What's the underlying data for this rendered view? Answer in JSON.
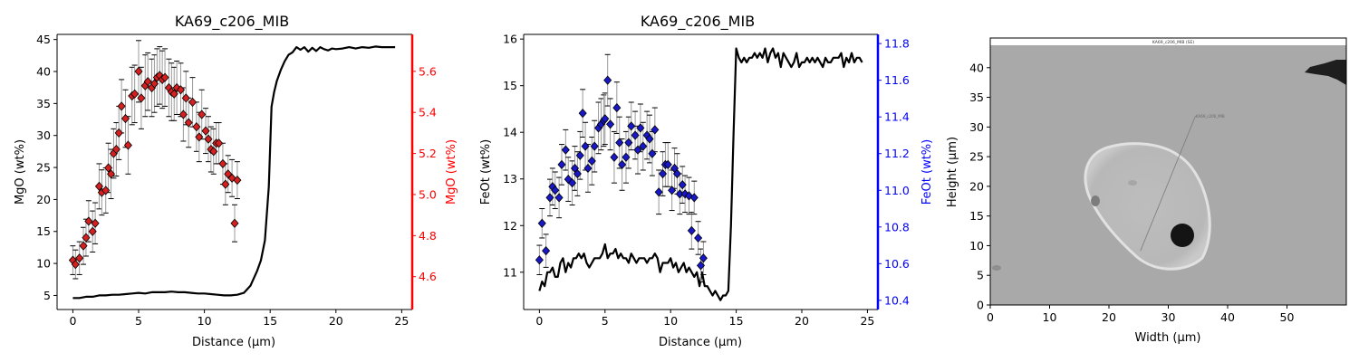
{
  "figure": {
    "panel1_title": "KA69_c206_MIB",
    "panel2_title": "KA69_c206_MIB",
    "image_banner": "KA69_c206_MIB (SE)",
    "image_profile_label": "KA69_c206_MIB"
  },
  "chart_data": [
    {
      "type": "line",
      "title": "KA69_c206_MIB",
      "xlabel": "Distance (µm)",
      "ylabel": "MgO (wt%)",
      "y2label": "MgO (wt%)",
      "xlim": [
        -1.2,
        25.8
      ],
      "ylim": [
        2.8,
        45.8
      ],
      "y2lim": [
        4.44,
        5.78
      ],
      "xticks": [
        0,
        5,
        10,
        15,
        20,
        25
      ],
      "yticks": [
        5,
        10,
        15,
        20,
        25,
        30,
        35,
        40,
        45
      ],
      "y2ticks": [
        4.6,
        4.8,
        5.0,
        5.2,
        5.4,
        5.6
      ],
      "colors": {
        "line": "#000000",
        "marker": "#d62020",
        "right_axis": "#ff0000",
        "errorbar": "#999999"
      },
      "line_series": {
        "x": [
          0.0,
          0.5,
          1.0,
          1.5,
          2.0,
          2.5,
          3.0,
          3.5,
          4.0,
          4.5,
          5.0,
          5.5,
          6.0,
          6.5,
          7.0,
          7.5,
          8.0,
          8.5,
          9.0,
          9.5,
          10.0,
          10.5,
          11.0,
          11.5,
          12.0,
          12.5,
          13.0,
          13.5,
          14.0,
          14.3,
          14.6,
          14.9,
          15.1,
          15.3,
          15.5,
          15.8,
          16.1,
          16.4,
          16.7,
          17.0,
          17.3,
          17.6,
          17.9,
          18.2,
          18.5,
          18.8,
          19.1,
          19.4,
          19.7,
          20.0,
          20.5,
          21.0,
          21.5,
          22.0,
          22.5,
          23.0,
          23.5,
          24.0,
          24.5
        ],
        "y": [
          4.6,
          4.6,
          4.8,
          4.8,
          5.0,
          5.0,
          5.1,
          5.1,
          5.2,
          5.3,
          5.4,
          5.3,
          5.5,
          5.5,
          5.5,
          5.6,
          5.5,
          5.5,
          5.4,
          5.3,
          5.3,
          5.2,
          5.1,
          5.0,
          5.0,
          5.1,
          5.4,
          6.5,
          8.8,
          10.5,
          13.6,
          22.0,
          34.5,
          36.8,
          38.5,
          40.2,
          41.6,
          42.6,
          43.0,
          43.8,
          43.4,
          43.8,
          43.1,
          43.7,
          43.2,
          43.8,
          43.5,
          43.3,
          43.6,
          43.5,
          43.6,
          43.8,
          43.6,
          43.8,
          43.7,
          43.9,
          43.8,
          43.8,
          43.8
        ]
      },
      "marker_series": {
        "x": [
          0.0,
          0.2,
          0.5,
          0.8,
          1.0,
          1.2,
          1.5,
          1.7,
          2.0,
          2.2,
          2.5,
          2.7,
          2.9,
          3.1,
          3.3,
          3.5,
          3.7,
          4.0,
          4.2,
          4.5,
          4.7,
          5.0,
          5.2,
          5.5,
          5.7,
          6.0,
          6.2,
          6.4,
          6.6,
          6.8,
          7.0,
          7.3,
          7.5,
          7.7,
          7.9,
          8.2,
          8.4,
          8.6,
          8.8,
          9.1,
          9.4,
          9.6,
          9.8,
          10.1,
          10.3,
          10.5,
          10.7,
          10.9,
          11.1,
          11.4,
          11.6,
          11.8,
          12.1,
          12.3,
          12.5
        ],
        "y": [
          4.68,
          4.66,
          4.69,
          4.75,
          4.79,
          4.87,
          4.82,
          4.86,
          5.04,
          5.01,
          5.02,
          5.13,
          5.1,
          5.2,
          5.22,
          5.3,
          5.43,
          5.37,
          5.24,
          5.48,
          5.49,
          5.6,
          5.47,
          5.53,
          5.55,
          5.52,
          5.54,
          5.57,
          5.58,
          5.56,
          5.57,
          5.52,
          5.5,
          5.49,
          5.52,
          5.51,
          5.39,
          5.47,
          5.35,
          5.45,
          5.33,
          5.28,
          5.39,
          5.31,
          5.27,
          5.22,
          5.21,
          5.25,
          5.25,
          5.15,
          5.05,
          5.1,
          5.08,
          4.86,
          5.07
        ],
        "err": [
          0.07,
          0.07,
          0.08,
          0.09,
          0.09,
          0.1,
          0.1,
          0.1,
          0.11,
          0.11,
          0.11,
          0.12,
          0.12,
          0.12,
          0.13,
          0.13,
          0.13,
          0.14,
          0.14,
          0.14,
          0.14,
          0.15,
          0.15,
          0.15,
          0.14,
          0.14,
          0.14,
          0.14,
          0.14,
          0.14,
          0.14,
          0.14,
          0.14,
          0.13,
          0.13,
          0.13,
          0.13,
          0.13,
          0.12,
          0.12,
          0.12,
          0.12,
          0.12,
          0.11,
          0.11,
          0.11,
          0.11,
          0.1,
          0.1,
          0.1,
          0.1,
          0.09,
          0.09,
          0.09,
          0.09
        ]
      }
    },
    {
      "type": "line",
      "title": "KA69_c206_MIB",
      "xlabel": "Distance (µm)",
      "ylabel": "FeOt (wt%)",
      "y2label": "FeOt (wt%)",
      "xlim": [
        -1.2,
        25.8
      ],
      "ylim": [
        10.2,
        16.1
      ],
      "y2lim": [
        10.35,
        11.85
      ],
      "xticks": [
        0,
        5,
        10,
        15,
        20,
        25
      ],
      "yticks": [
        11,
        12,
        13,
        14,
        15,
        16
      ],
      "y2ticks": [
        10.4,
        10.6,
        10.8,
        11.0,
        11.2,
        11.4,
        11.6,
        11.8
      ],
      "colors": {
        "line": "#000000",
        "marker": "#1818c8",
        "right_axis": "#0000ff",
        "errorbar": "#999999"
      },
      "line_series": {
        "x": [
          0.0,
          0.2,
          0.4,
          0.6,
          0.8,
          1.0,
          1.2,
          1.4,
          1.6,
          1.8,
          2.0,
          2.2,
          2.4,
          2.6,
          2.8,
          3.0,
          3.2,
          3.4,
          3.6,
          3.8,
          4.0,
          4.2,
          4.4,
          4.6,
          4.8,
          5.0,
          5.2,
          5.4,
          5.6,
          5.8,
          6.0,
          6.2,
          6.4,
          6.6,
          6.8,
          7.0,
          7.2,
          7.4,
          7.6,
          7.8,
          8.0,
          8.2,
          8.4,
          8.6,
          8.8,
          9.0,
          9.2,
          9.4,
          9.6,
          9.8,
          10.0,
          10.2,
          10.4,
          10.6,
          10.8,
          11.0,
          11.2,
          11.4,
          11.6,
          11.8,
          12.0,
          12.2,
          12.4,
          12.6,
          12.8,
          13.0,
          13.2,
          13.4,
          13.6,
          13.8,
          14.0,
          14.2,
          14.4,
          14.6,
          14.8,
          15.0,
          15.2,
          15.4,
          15.6,
          15.8,
          16.0,
          16.2,
          16.4,
          16.6,
          16.8,
          17.0,
          17.2,
          17.4,
          17.6,
          17.8,
          18.0,
          18.2,
          18.4,
          18.6,
          18.8,
          19.0,
          19.2,
          19.4,
          19.6,
          19.8,
          20.0,
          20.2,
          20.4,
          20.6,
          20.8,
          21.0,
          21.2,
          21.4,
          21.6,
          21.8,
          22.0,
          22.2,
          22.4,
          22.6,
          22.8,
          23.0,
          23.2,
          23.4,
          23.6,
          23.8,
          24.0,
          24.2,
          24.4,
          24.6
        ],
        "y": [
          10.6,
          10.8,
          10.7,
          11.0,
          11.0,
          11.1,
          10.9,
          10.9,
          11.2,
          11.3,
          11.0,
          11.2,
          11.1,
          11.3,
          11.3,
          11.4,
          11.3,
          11.4,
          11.2,
          11.1,
          11.2,
          11.3,
          11.3,
          11.3,
          11.4,
          11.6,
          11.3,
          11.4,
          11.4,
          11.5,
          11.3,
          11.4,
          11.3,
          11.3,
          11.2,
          11.4,
          11.3,
          11.2,
          11.3,
          11.3,
          11.3,
          11.2,
          11.3,
          11.3,
          11.4,
          11.3,
          11.0,
          11.2,
          11.2,
          11.2,
          11.3,
          11.1,
          11.2,
          11.0,
          11.1,
          11.2,
          11.0,
          11.1,
          11.0,
          10.9,
          11.0,
          10.7,
          11.0,
          10.7,
          10.7,
          10.6,
          10.5,
          10.6,
          10.5,
          10.4,
          10.5,
          10.5,
          10.6,
          12.0,
          14.0,
          15.8,
          15.6,
          15.5,
          15.6,
          15.5,
          15.6,
          15.6,
          15.7,
          15.6,
          15.7,
          15.6,
          15.8,
          15.5,
          15.7,
          15.8,
          15.6,
          15.7,
          15.4,
          15.7,
          15.6,
          15.5,
          15.4,
          15.5,
          15.7,
          15.4,
          15.5,
          15.5,
          15.6,
          15.5,
          15.6,
          15.5,
          15.6,
          15.5,
          15.4,
          15.6,
          15.5,
          15.5,
          15.6,
          15.6,
          15.6,
          15.7,
          15.4,
          15.6,
          15.5,
          15.7,
          15.5,
          15.6,
          15.6,
          15.5
        ],
        "ylim_note": ""
      },
      "marker_series": {
        "x": [
          0.0,
          0.2,
          0.5,
          0.8,
          1.0,
          1.2,
          1.5,
          1.7,
          2.0,
          2.2,
          2.5,
          2.7,
          2.9,
          3.1,
          3.3,
          3.5,
          3.7,
          4.0,
          4.2,
          4.5,
          4.7,
          4.9,
          5.0,
          5.2,
          5.4,
          5.7,
          5.9,
          6.1,
          6.3,
          6.6,
          6.8,
          7.0,
          7.3,
          7.5,
          7.7,
          7.9,
          8.2,
          8.4,
          8.6,
          8.8,
          9.1,
          9.4,
          9.6,
          9.8,
          10.1,
          10.3,
          10.5,
          10.7,
          10.9,
          11.1,
          11.4,
          11.6,
          11.8,
          12.1,
          12.3,
          12.5
        ],
        "y": [
          10.62,
          10.82,
          10.67,
          10.96,
          11.02,
          11.0,
          10.96,
          11.14,
          11.22,
          11.06,
          11.04,
          11.12,
          11.09,
          11.19,
          11.42,
          11.24,
          11.12,
          11.16,
          11.24,
          11.34,
          11.36,
          11.38,
          11.39,
          11.6,
          11.36,
          11.18,
          11.45,
          11.26,
          11.14,
          11.18,
          11.26,
          11.35,
          11.3,
          11.22,
          11.34,
          11.24,
          11.3,
          11.28,
          11.2,
          11.33,
          10.99,
          11.09,
          11.14,
          11.14,
          11.0,
          11.12,
          11.09,
          10.98,
          11.03,
          10.98,
          10.97,
          10.78,
          10.96,
          10.74,
          10.59,
          10.63
        ],
        "err": [
          0.08,
          0.08,
          0.09,
          0.1,
          0.1,
          0.1,
          0.11,
          0.11,
          0.11,
          0.12,
          0.12,
          0.12,
          0.12,
          0.13,
          0.13,
          0.13,
          0.13,
          0.13,
          0.14,
          0.14,
          0.14,
          0.14,
          0.14,
          0.14,
          0.14,
          0.14,
          0.14,
          0.14,
          0.14,
          0.14,
          0.14,
          0.13,
          0.13,
          0.13,
          0.13,
          0.13,
          0.13,
          0.13,
          0.12,
          0.12,
          0.12,
          0.12,
          0.12,
          0.12,
          0.11,
          0.11,
          0.11,
          0.11,
          0.1,
          0.1,
          0.1,
          0.1,
          0.09,
          0.09,
          0.09,
          0.09
        ]
      }
    },
    {
      "type": "image",
      "xlabel": "Width (µm)",
      "ylabel": "Height (µm)",
      "xlim": [
        0,
        60
      ],
      "ylim": [
        0,
        45
      ],
      "image_extent_top": 43.5,
      "xticks": [
        0,
        10,
        20,
        30,
        40,
        50
      ],
      "yticks": [
        0,
        5,
        10,
        15,
        20,
        25,
        30,
        35,
        40
      ],
      "profile_line": {
        "start": [
          25.3,
          9.1
        ],
        "end": [
          34.6,
          31.9
        ]
      },
      "colors": {
        "background": "#a9a9a9",
        "grain": "#b9b9b9",
        "rim": "#d8d8d8",
        "spot": "#141414"
      }
    }
  ]
}
